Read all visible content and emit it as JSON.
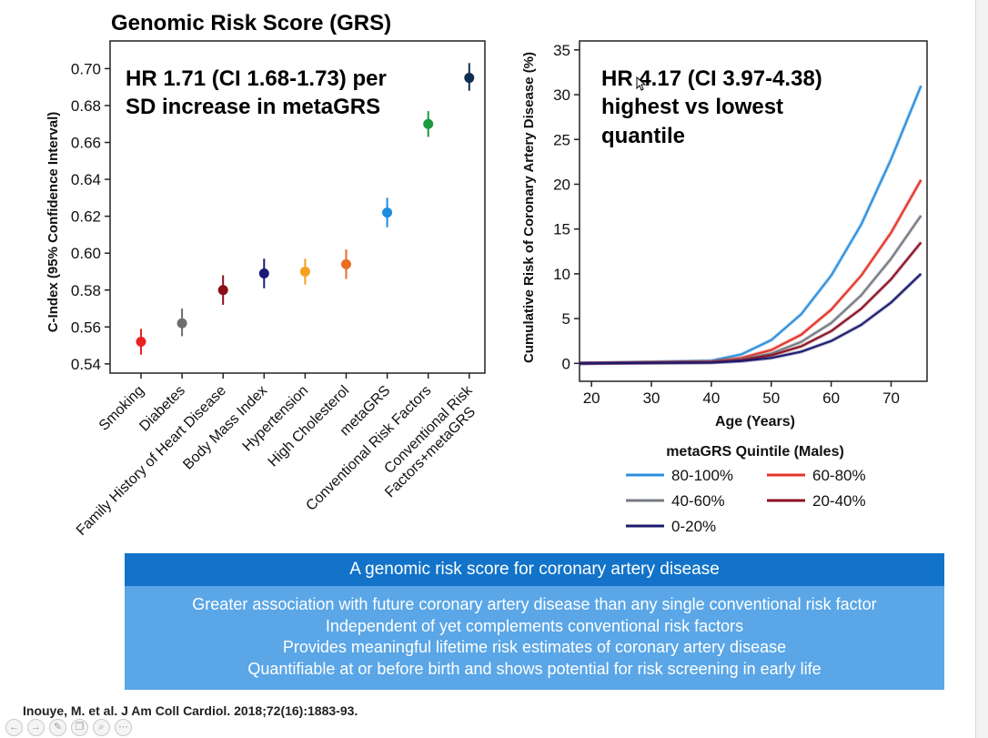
{
  "slide": {
    "left_title": "Genomic Risk Score (GRS)",
    "banner_title": "A genomic risk score for coronary artery disease",
    "banner_lines": [
      "Greater association with future coronary artery disease than any single conventional risk factor",
      "Independent of yet complements conventional risk factors",
      "Provides meaningful lifetime risk estimates of coronary artery disease",
      "Quantifiable at or before birth and shows potential for risk screening in early life"
    ],
    "citation": "Inouye, M. et al. J Am Coll Cardiol. 2018;72(16):1883-93.",
    "toolbar_icons": [
      "back-icon",
      "forward-icon",
      "edit-icon",
      "copy-icon",
      "zoom-icon",
      "more-icon"
    ]
  },
  "chart_data": [
    {
      "type": "scatter",
      "ylabel": "C-Index (95% Confidence Interval)",
      "ylim": [
        0.535,
        0.715
      ],
      "yticks": [
        "0.54",
        "0.56",
        "0.58",
        "0.60",
        "0.62",
        "0.64",
        "0.66",
        "0.68",
        "0.70"
      ],
      "annotation": [
        "HR 1.71 (CI 1.68-1.73) per",
        "SD increase in metaGRS"
      ],
      "categories": [
        "Smoking",
        "Diabetes",
        "Family History of Heart Disease",
        "Body Mass Index",
        "Hypertension",
        "High Cholesterol",
        "metaGRS",
        "Conventional Risk Factors",
        "Conventional Risk Factors+metaGRS"
      ],
      "category_lines": [
        [
          "Smoking"
        ],
        [
          "Diabetes"
        ],
        [
          "Family History of Heart Disease"
        ],
        [
          "Body Mass Index"
        ],
        [
          "Hypertension"
        ],
        [
          "High Cholesterol"
        ],
        [
          "metaGRS"
        ],
        [
          "Conventional Risk Factors"
        ],
        [
          "Conventional Risk",
          "Factors+metaGRS"
        ]
      ],
      "values": [
        0.552,
        0.562,
        0.58,
        0.589,
        0.59,
        0.594,
        0.622,
        0.67,
        0.695
      ],
      "ci_low": [
        0.545,
        0.555,
        0.572,
        0.581,
        0.583,
        0.586,
        0.614,
        0.663,
        0.688
      ],
      "ci_high": [
        0.559,
        0.57,
        0.588,
        0.597,
        0.597,
        0.602,
        0.63,
        0.677,
        0.703
      ],
      "colors": [
        "#e8231f",
        "#6e6e6e",
        "#8b0d1a",
        "#1a1a7a",
        "#f4a11f",
        "#ea6c26",
        "#1c8be0",
        "#1a9a3c",
        "#0e2f4f"
      ]
    },
    {
      "type": "line",
      "xlabel": "Age (Years)",
      "ylabel": "Cumulative Risk of Coronary Artery Disease (%)",
      "xlim": [
        18,
        76
      ],
      "ylim": [
        -2,
        36
      ],
      "xticks": [
        "20",
        "30",
        "40",
        "50",
        "60",
        "70"
      ],
      "xtick_values": [
        20,
        30,
        40,
        50,
        60,
        70
      ],
      "yticks": [
        "0",
        "5",
        "10",
        "15",
        "20",
        "25",
        "30",
        "35"
      ],
      "ytick_values": [
        0,
        5,
        10,
        15,
        20,
        25,
        30,
        35
      ],
      "annotation": [
        "HR 4.17 (CI 3.97-4.38)",
        "highest vs lowest",
        "quantile"
      ],
      "legend_title": "metaGRS Quintile (Males)",
      "legend_position": "bottom",
      "x": [
        18,
        40,
        45,
        50,
        55,
        60,
        65,
        70,
        75
      ],
      "series": [
        {
          "name": "80-100%",
          "color": "#2e8fdc",
          "values": [
            0,
            0.3,
            1.0,
            2.6,
            5.5,
            9.8,
            15.5,
            22.8,
            31.0
          ]
        },
        {
          "name": "60-80%",
          "color": "#e3342b",
          "values": [
            0,
            0.2,
            0.6,
            1.5,
            3.2,
            6.0,
            9.8,
            14.6,
            20.5
          ]
        },
        {
          "name": "40-60%",
          "color": "#757a82",
          "values": [
            0,
            0.15,
            0.45,
            1.1,
            2.4,
            4.5,
            7.6,
            11.7,
            16.5
          ]
        },
        {
          "name": "20-40%",
          "color": "#8a1124",
          "values": [
            0,
            0.12,
            0.35,
            0.9,
            1.9,
            3.6,
            6.1,
            9.4,
            13.5
          ]
        },
        {
          "name": "0-20%",
          "color": "#1c1a6e",
          "values": [
            0,
            0.08,
            0.25,
            0.6,
            1.3,
            2.5,
            4.3,
            6.8,
            10.0
          ]
        }
      ]
    }
  ]
}
